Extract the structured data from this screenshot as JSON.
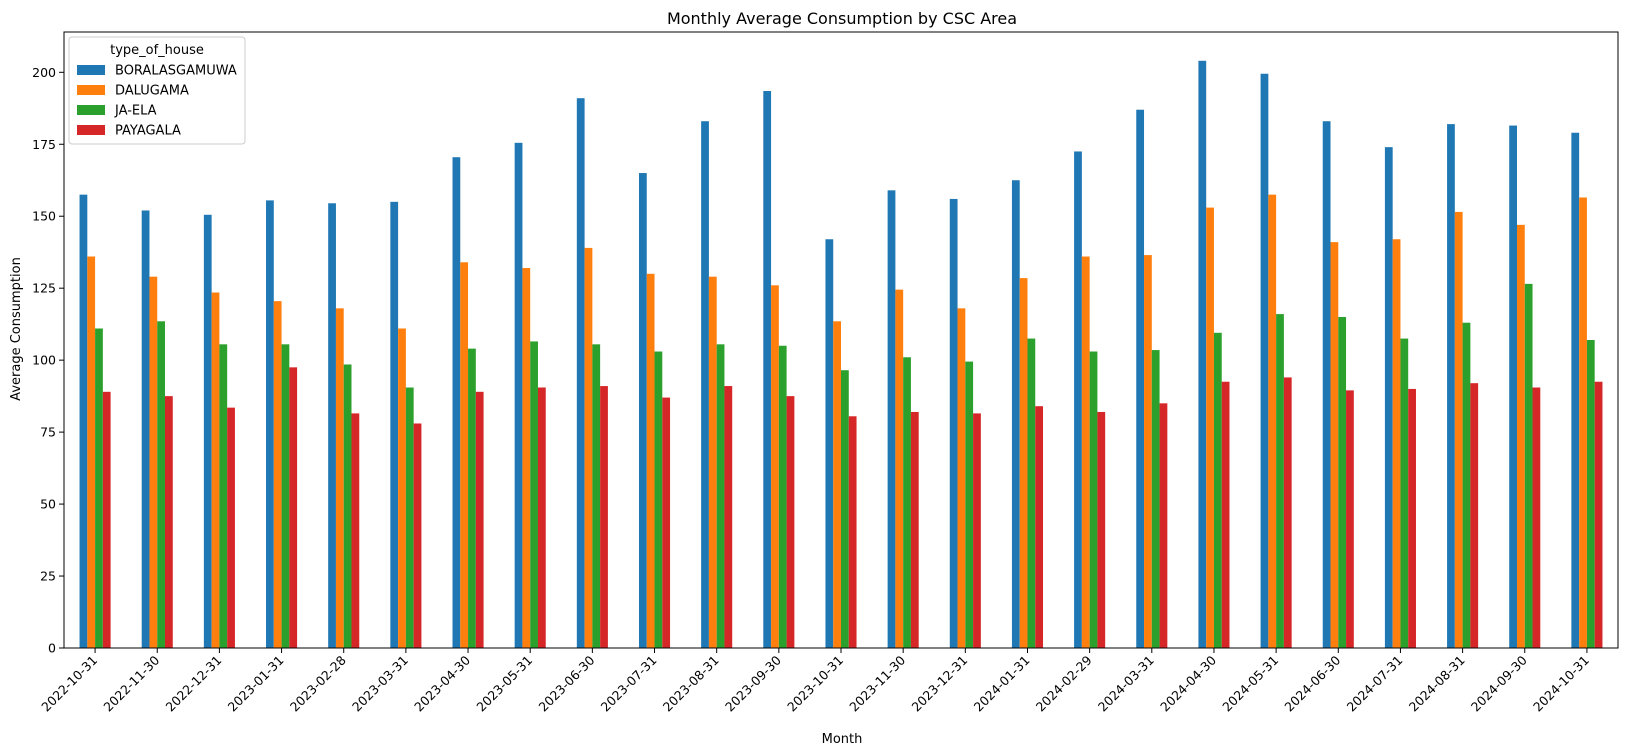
{
  "chart_data": {
    "type": "bar",
    "title": "Monthly Average Consumption by CSC Area",
    "xlabel": "Month",
    "ylabel": "Average Consumption",
    "ylim": [
      0,
      214
    ],
    "yticks": [
      0,
      25,
      50,
      75,
      100,
      125,
      150,
      175,
      200
    ],
    "grid": false,
    "legend": {
      "title": "type_of_house",
      "placement": "top-left"
    },
    "categories": [
      "2022-10-31",
      "2022-11-30",
      "2022-12-31",
      "2023-01-31",
      "2023-02-28",
      "2023-03-31",
      "2023-04-30",
      "2023-05-31",
      "2023-06-30",
      "2023-07-31",
      "2023-08-31",
      "2023-09-30",
      "2023-10-31",
      "2023-11-30",
      "2023-12-31",
      "2024-01-31",
      "2024-02-29",
      "2024-03-31",
      "2024-04-30",
      "2024-05-31",
      "2024-06-30",
      "2024-07-31",
      "2024-08-31",
      "2024-09-30",
      "2024-10-31"
    ],
    "series": [
      {
        "name": "BORALASGAMUWA",
        "color": "#1f77b4",
        "values": [
          157.5,
          152,
          150.5,
          155.5,
          154.5,
          155,
          170.5,
          175.5,
          191,
          165,
          183,
          193.5,
          142,
          159,
          156,
          162.5,
          172.5,
          187,
          204,
          199.5,
          183,
          174,
          182,
          181.5,
          179
        ]
      },
      {
        "name": "DALUGAMA",
        "color": "#ff7f0e",
        "values": [
          136,
          129,
          123.5,
          120.5,
          118,
          111,
          134,
          132,
          139,
          130,
          129,
          126,
          113.5,
          124.5,
          118,
          128.5,
          136,
          136.5,
          153,
          157.5,
          141,
          142,
          151.5,
          147,
          156.5
        ]
      },
      {
        "name": "JA-ELA",
        "color": "#2ca02c",
        "values": [
          111,
          113.5,
          105.5,
          105.5,
          98.5,
          90.5,
          104,
          106.5,
          105.5,
          103,
          105.5,
          105,
          96.5,
          101,
          99.5,
          107.5,
          103,
          103.5,
          109.5,
          116,
          115,
          107.5,
          113,
          126.5,
          107
        ]
      },
      {
        "name": "PAYAGALA",
        "color": "#d62728",
        "values": [
          89,
          87.5,
          83.5,
          97.5,
          81.5,
          78,
          89,
          90.5,
          91,
          87,
          91,
          87.5,
          80.5,
          82,
          81.5,
          84,
          82,
          85,
          92.5,
          94,
          89.5,
          90,
          92,
          90.5,
          92.5
        ]
      }
    ]
  }
}
